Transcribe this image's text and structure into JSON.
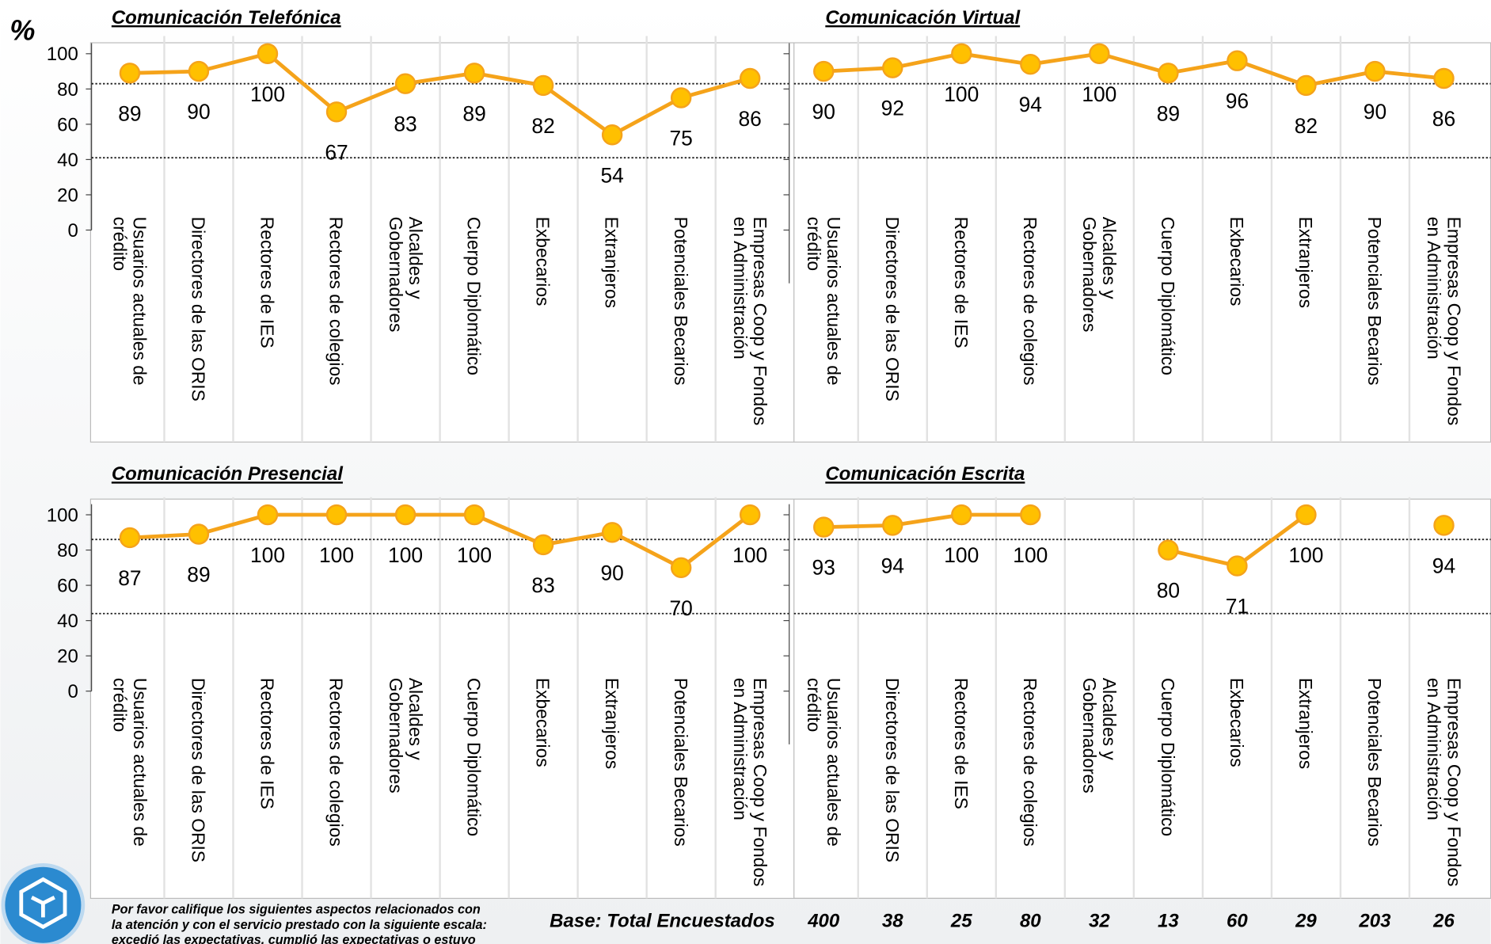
{
  "unit_label": "%",
  "chart_data": [
    {
      "type": "line",
      "title": "Comunicación Telefónica",
      "categories": [
        "Usuarios actuales de crédito",
        "Directores de las ORIS",
        "Rectores de IES",
        "Rectores de colegios",
        "Alcaldes y Gobernadores",
        "Cuerpo Diplomático",
        "Exbecarios",
        "Extranjeros",
        "Potenciales Becarios",
        "Empresas Coop y Fondos en Administración"
      ],
      "values": [
        89,
        90,
        100,
        67,
        83,
        89,
        82,
        54,
        75,
        86
      ],
      "color": "#f5a31a",
      "marker_color": "#ffc000",
      "ylim": [
        0,
        110
      ],
      "yticks": [
        0,
        20,
        40,
        60,
        80,
        100
      ],
      "ytick_labels": true,
      "reference_lines": [
        83,
        41
      ]
    },
    {
      "type": "line",
      "title": "Comunicación Virtual",
      "categories": [
        "Usuarios actuales de crédito",
        "Directores de las ORIS",
        "Rectores de IES",
        "Rectores de colegios",
        "Alcaldes y Gobernadores",
        "Cuerpo Diplomático",
        "Exbecarios",
        "Extranjeros",
        "Potenciales Becarios",
        "Empresas Coop y Fondos en Administración"
      ],
      "values": [
        90,
        92,
        100,
        94,
        100,
        89,
        96,
        82,
        90,
        86
      ],
      "color": "#f5a31a",
      "marker_color": "#ffc000",
      "ylim": [
        0,
        110
      ],
      "yticks": [
        0,
        20,
        40,
        60,
        80,
        100
      ],
      "ytick_labels": false,
      "reference_lines": [
        83,
        41
      ]
    },
    {
      "type": "line",
      "title": "Comunicación Presencial",
      "categories": [
        "Usuarios actuales de crédito",
        "Directores de las ORIS",
        "Rectores de IES",
        "Rectores de colegios",
        "Alcaldes y Gobernadores",
        "Cuerpo Diplomático",
        "Exbecarios",
        "Extranjeros",
        "Potenciales Becarios",
        "Empresas Coop y Fondos en Administración"
      ],
      "values": [
        87,
        89,
        100,
        100,
        100,
        100,
        83,
        90,
        70,
        100
      ],
      "color": "#f5a31a",
      "marker_color": "#ffc000",
      "ylim": [
        0,
        110
      ],
      "yticks": [
        0,
        20,
        40,
        60,
        80,
        100
      ],
      "ytick_labels": true,
      "reference_lines": [
        86,
        44
      ]
    },
    {
      "type": "line",
      "title": "Comunicación Escrita",
      "categories": [
        "Usuarios actuales de crédito",
        "Directores de las ORIS",
        "Rectores de IES",
        "Rectores de colegios",
        "Alcaldes y Gobernadores",
        "Cuerpo Diplomático",
        "Exbecarios",
        "Extranjeros",
        "Potenciales Becarios",
        "Empresas Coop y Fondos en Administración"
      ],
      "values": [
        93,
        94,
        100,
        100,
        null,
        80,
        71,
        100,
        null,
        94
      ],
      "color": "#f5a31a",
      "marker_color": "#ffc000",
      "ylim": [
        0,
        110
      ],
      "yticks": [
        0,
        20,
        40,
        60,
        80,
        100
      ],
      "ytick_labels": false,
      "reference_lines": [
        86,
        44
      ]
    }
  ],
  "footer": {
    "base_label": "Base: Total Encuestados",
    "base_values": [
      400,
      38,
      25,
      80,
      32,
      13,
      60,
      29,
      203,
      26
    ],
    "note": [
      "Por favor califique los siguientes aspectos relacionados con",
      "la atención y con el servicio prestado con la siguiente escala:",
      "excedió las expectativas, cumplió las expectativas o estuvo"
    ]
  }
}
